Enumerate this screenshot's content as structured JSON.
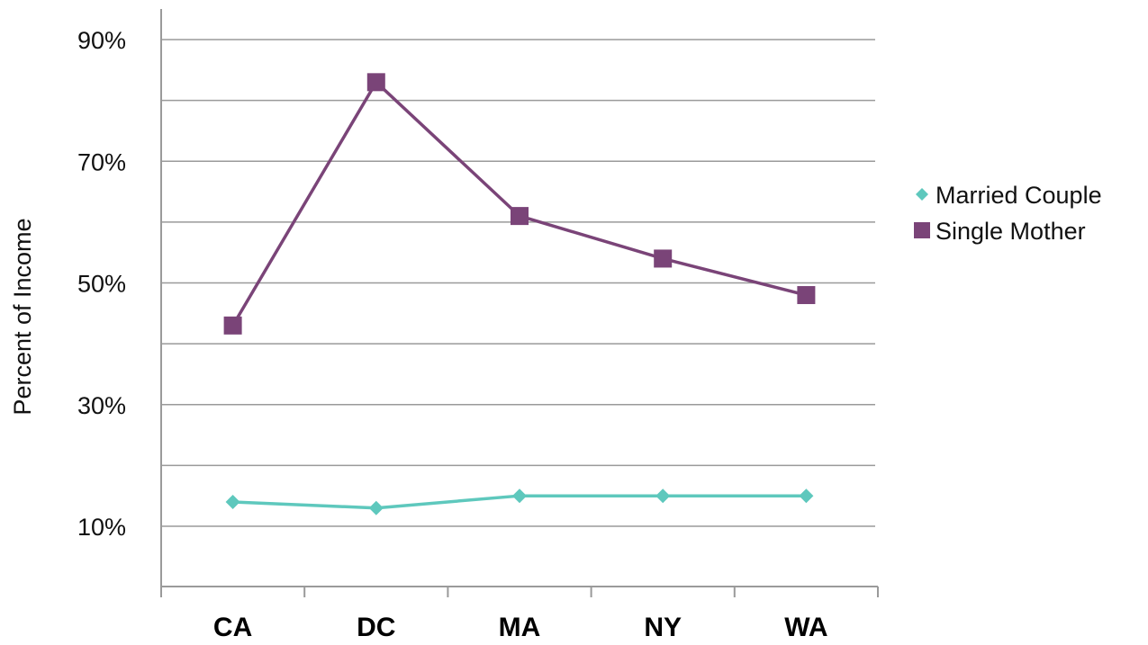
{
  "chart_data": {
    "type": "line",
    "ylabel": "Percent of Income",
    "xlabel": "",
    "categories": [
      "CA",
      "DC",
      "MA",
      "NY",
      "WA"
    ],
    "ylim": [
      0,
      95
    ],
    "yticks": [
      10,
      30,
      50,
      70,
      90
    ],
    "ytick_labels": [
      "10%",
      "30%",
      "50%",
      "70%",
      "90%"
    ],
    "grid": true,
    "legend_position": "right",
    "series": [
      {
        "name": "Married Couple",
        "marker": "diamond",
        "color": "#5ec8bd",
        "values": [
          14,
          13,
          15,
          15,
          15
        ]
      },
      {
        "name": "Single Mother",
        "marker": "square",
        "color": "#7a4478",
        "values": [
          43,
          83,
          61,
          54,
          48
        ]
      }
    ]
  }
}
